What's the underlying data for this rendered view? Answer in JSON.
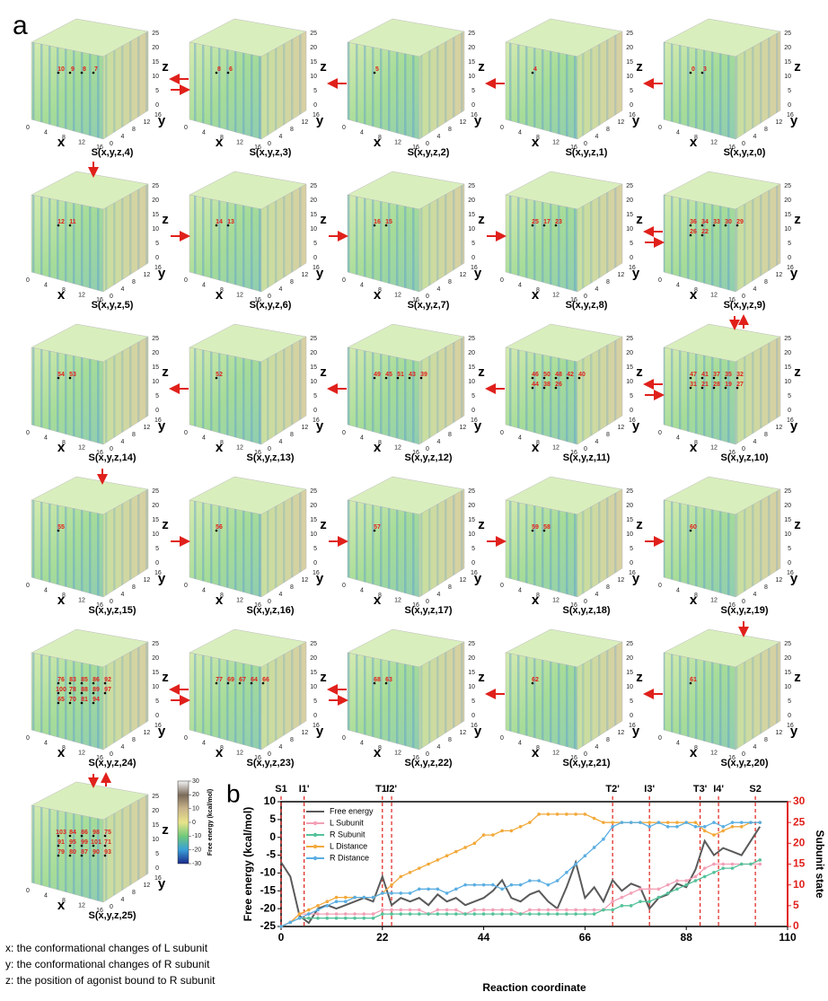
{
  "panel_a": {
    "letter": "a",
    "axes": {
      "x_title": "x",
      "y_title": "y",
      "z_title": "z",
      "x_ticks": [
        0,
        4,
        8,
        12,
        16
      ],
      "y_ticks": [
        0,
        4,
        8,
        12,
        16
      ],
      "z_ticks": [
        0,
        5,
        10,
        15,
        20,
        25
      ]
    },
    "panels": [
      {
        "label": "S(x,y,z,4)",
        "points": [
          10,
          9,
          8,
          7
        ]
      },
      {
        "label": "S(x,y,z,3)",
        "points": [
          8,
          6
        ]
      },
      {
        "label": "S(x,y,z,2)",
        "points": [
          5
        ]
      },
      {
        "label": "S(x,y,z,1)",
        "points": [
          4
        ]
      },
      {
        "label": "S(x,y,z,0)",
        "points": [
          0,
          3
        ]
      },
      {
        "label": "S(x,y,z,5)",
        "points": [
          12,
          11
        ]
      },
      {
        "label": "S(x,y,z,6)",
        "points": [
          14,
          13
        ]
      },
      {
        "label": "S(x,y,z,7)",
        "points": [
          16,
          15
        ]
      },
      {
        "label": "S(x,y,z,8)",
        "points": [
          25,
          17,
          23
        ]
      },
      {
        "label": "S(x,y,z,9)",
        "points": [
          36,
          34,
          33,
          30,
          29,
          26,
          22
        ]
      },
      {
        "label": "S(x,y,z,14)",
        "points": [
          54,
          53
        ]
      },
      {
        "label": "S(x,y,z,13)",
        "points": [
          52
        ]
      },
      {
        "label": "S(x,y,z,12)",
        "points": [
          49,
          45,
          51,
          43,
          39
        ]
      },
      {
        "label": "S(x,y,z,11)",
        "points": [
          46,
          50,
          48,
          42,
          40,
          44,
          38,
          26
        ]
      },
      {
        "label": "S(x,y,z,10)",
        "points": [
          47,
          41,
          37,
          35,
          32,
          31,
          21,
          28,
          19,
          27
        ]
      },
      {
        "label": "S(x,y,z,15)",
        "points": [
          55
        ]
      },
      {
        "label": "S(x,y,z,16)",
        "points": [
          56
        ]
      },
      {
        "label": "S(x,y,z,17)",
        "points": [
          57
        ]
      },
      {
        "label": "S(x,y,z,18)",
        "points": [
          59,
          58
        ]
      },
      {
        "label": "S(x,y,z,19)",
        "points": [
          60
        ]
      },
      {
        "label": "S(x,y,z,24)",
        "points": [
          76,
          83,
          85,
          86,
          92,
          100,
          78,
          88,
          89,
          97,
          65,
          70,
          81,
          94
        ]
      },
      {
        "label": "S(x,y,z,23)",
        "points": [
          77,
          69,
          67,
          64,
          66
        ]
      },
      {
        "label": "S(x,y,z,22)",
        "points": [
          68,
          63
        ]
      },
      {
        "label": "S(x,y,z,21)",
        "points": [
          62
        ]
      },
      {
        "label": "S(x,y,z,20)",
        "points": [
          61
        ]
      },
      {
        "label": "S(x,y,z,25)",
        "points": [
          103,
          84,
          86,
          98,
          75,
          91,
          95,
          99,
          101,
          71,
          79,
          80,
          87,
          90,
          93
        ]
      }
    ],
    "colorbar": {
      "title": "Free energy (kcal/mol)",
      "lim": [
        -30,
        30
      ],
      "ticks": [
        30,
        20,
        10,
        0,
        -10,
        -20,
        -30
      ]
    },
    "notes": [
      "x: the conformational changes of L subunit",
      "y: the conformational changes of R subunit",
      "z: the position of agonist bound to R subunit"
    ]
  },
  "chart_data": {
    "type": "line",
    "letter": "b",
    "xlabel": "Reaction coordinate",
    "ylabel": "Free energy (kcal/mol)",
    "y2label": "Subunit state",
    "xlim": [
      0,
      110
    ],
    "xticks": [
      0,
      22,
      44,
      66,
      88,
      110
    ],
    "ylim": [
      -25,
      10
    ],
    "yticks": [
      -25,
      -20,
      -15,
      -10,
      -5,
      0,
      5,
      10
    ],
    "y2lim": [
      0,
      30
    ],
    "y2ticks": [
      0,
      5,
      10,
      15,
      20,
      25,
      30
    ],
    "legend": "upper left",
    "annotations": [
      {
        "text": "S1",
        "x": 0
      },
      {
        "text": "I1'",
        "x": 5
      },
      {
        "text": "T1'",
        "x": 22
      },
      {
        "text": "I2'",
        "x": 24
      },
      {
        "text": "T2'",
        "x": 72
      },
      {
        "text": "I3'",
        "x": 80
      },
      {
        "text": "T3'",
        "x": 91
      },
      {
        "text": "I4'",
        "x": 95
      },
      {
        "text": "S2",
        "x": 103
      }
    ],
    "x": [
      0,
      2,
      4,
      6,
      8,
      10,
      12,
      14,
      16,
      18,
      20,
      22,
      24,
      26,
      28,
      30,
      32,
      34,
      36,
      38,
      40,
      42,
      44,
      46,
      48,
      50,
      52,
      54,
      56,
      58,
      60,
      62,
      64,
      66,
      68,
      70,
      72,
      74,
      76,
      78,
      80,
      82,
      84,
      86,
      88,
      90,
      92,
      94,
      96,
      98,
      100,
      102,
      104
    ],
    "series": [
      {
        "name": "Free energy",
        "color": "#5a5a5a",
        "values": [
          -7,
          -11,
          -22,
          -24,
          -20,
          -19,
          -20,
          -19,
          -18,
          -17,
          -18,
          -11,
          -19,
          -17,
          -18,
          -17,
          -19,
          -16,
          -18,
          -17,
          -19,
          -18,
          -17,
          -15,
          -12,
          -17,
          -18,
          -16,
          -15,
          -18,
          -20,
          -14,
          -7,
          -17,
          -14,
          -18,
          -12,
          -15,
          -13,
          -14,
          -20,
          -17,
          -16,
          -13,
          -14,
          -9,
          -1,
          -5,
          -3,
          -4,
          -5,
          -1,
          3
        ]
      },
      {
        "name": "L Subunit",
        "color": "#f3a0b6",
        "axis": "y2",
        "values": [
          0,
          1,
          3,
          3,
          3,
          3,
          3,
          3,
          3,
          3,
          3,
          4,
          4,
          4,
          4,
          4,
          3,
          4,
          4,
          4,
          3,
          4,
          4,
          4,
          4,
          4,
          3,
          4,
          4,
          4,
          4,
          4,
          4,
          4,
          4,
          4,
          6,
          7,
          8,
          9,
          9,
          9,
          10,
          11,
          11,
          12,
          14,
          15,
          15,
          15,
          15,
          15,
          15
        ]
      },
      {
        "name": "R Subunit",
        "color": "#55c29a",
        "axis": "y2",
        "values": [
          0,
          1,
          2,
          2,
          2,
          2,
          2,
          2,
          2,
          2,
          2,
          3,
          3,
          3,
          3,
          3,
          3,
          3,
          3,
          3,
          3,
          3,
          3,
          3,
          3,
          3,
          3,
          3,
          3,
          3,
          3,
          3,
          3,
          3,
          3,
          4,
          4,
          5,
          5,
          6,
          6,
          7,
          8,
          9,
          10,
          11,
          12,
          13,
          14,
          14,
          15,
          15,
          16
        ]
      },
      {
        "name": "L Distance",
        "color": "#f2a93b",
        "axis": "y2",
        "values": [
          0,
          1,
          3,
          4,
          5,
          6,
          7,
          7,
          7,
          7,
          7,
          8,
          10,
          12,
          13,
          14,
          15,
          16,
          17,
          18,
          19,
          20,
          22,
          22,
          23,
          23,
          24,
          25,
          27,
          27,
          27,
          27,
          27,
          27,
          26,
          25,
          25,
          25,
          25,
          25,
          25,
          25,
          25,
          25,
          25,
          25,
          23,
          22,
          23,
          24,
          24,
          25,
          25
        ]
      },
      {
        "name": "R Distance",
        "color": "#5aaee2",
        "axis": "y2",
        "values": [
          0,
          1,
          2,
          3,
          4,
          5,
          6,
          6,
          7,
          7,
          7,
          8,
          8,
          8,
          8,
          9,
          9,
          9,
          8,
          9,
          10,
          10,
          10,
          10,
          9,
          10,
          10,
          11,
          11,
          10,
          11,
          13,
          15,
          17,
          19,
          21,
          24,
          25,
          25,
          25,
          24,
          25,
          24,
          24,
          25,
          24,
          24,
          25,
          24,
          25,
          25,
          25,
          25
        ]
      }
    ]
  }
}
